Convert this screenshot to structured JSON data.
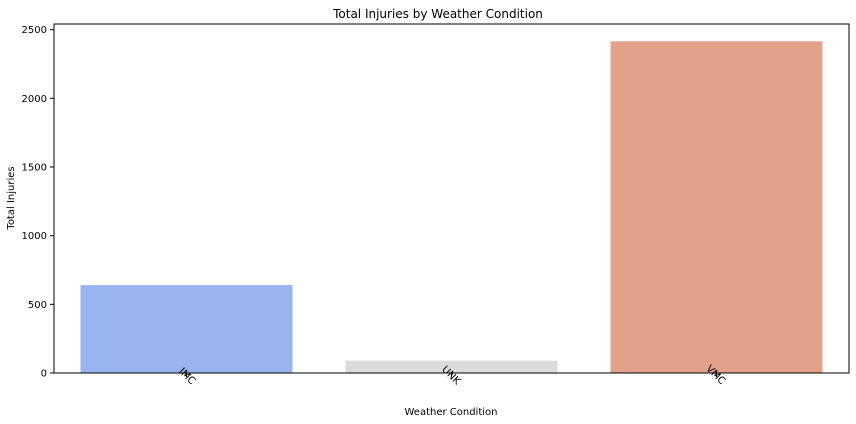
{
  "chart_data": {
    "type": "bar",
    "title": "Total Injuries by Weather Condition",
    "xlabel": "Weather Condition",
    "ylabel": "Total Injuries",
    "categories": [
      "IMC",
      "UNK",
      "VMC"
    ],
    "values": [
      640,
      90,
      2415
    ],
    "colors": [
      "#9ab4f0",
      "#dcdcdc",
      "#e4a189"
    ],
    "ylim": [
      0,
      2541
    ],
    "yticks": [
      0,
      500,
      1000,
      1500,
      2000,
      2500
    ],
    "ytick_labels": [
      "0",
      "500",
      "1000",
      "1500",
      "2000",
      "2500"
    ],
    "grid": false,
    "xtick_rotation_deg": 45
  }
}
